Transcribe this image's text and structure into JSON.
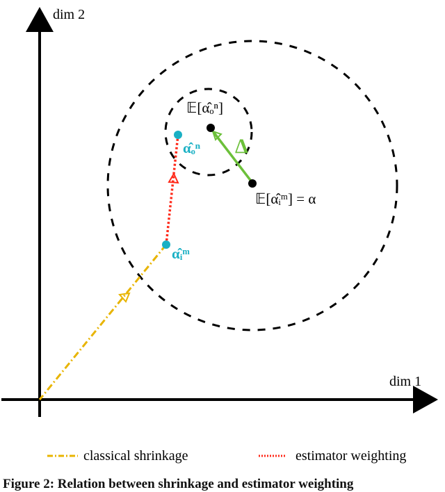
{
  "axes": {
    "x_label": "dim 1",
    "y_label": "dim 2"
  },
  "points": {
    "expected_outer": "𝔼[α̂ₒⁿ]",
    "expected_inner": "𝔼[α̂ᵢᵐ] = α",
    "outer_estimate": "α̂ₒⁿ",
    "inner_estimate": "α̂ᵢᵐ"
  },
  "delta_label": "Δ",
  "legend": [
    {
      "label": "classical shrinkage",
      "color": "#e8b400",
      "style": "dash-dot"
    },
    {
      "label": "estimator weighting",
      "color": "#ff2a1a",
      "style": "dotted"
    }
  ],
  "colors": {
    "estimate": "#1ab0c4",
    "delta": "#6cc03a",
    "circle": "#000000"
  },
  "caption": "Figure 2: Relation between shrinkage and estimator weighting"
}
